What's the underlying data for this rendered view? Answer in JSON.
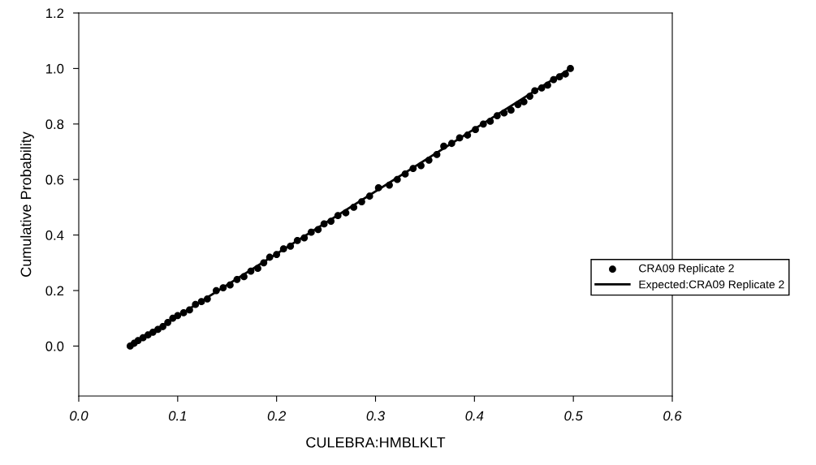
{
  "chart_data": {
    "type": "scatter",
    "xlabel": "CULEBRA:HMBLKLT",
    "ylabel": "Cumulative Probability",
    "xlim": [
      0.0,
      0.6
    ],
    "xticks": [
      {
        "value": 0.0,
        "label": "0.0"
      },
      0.1,
      0.2,
      0.3,
      0.4,
      0.5,
      0.6
    ],
    "ylim": [
      -0.18,
      1.2
    ],
    "yticks": [
      {
        "value": 0.0,
        "label": "0.0"
      },
      0.2,
      0.4,
      0.6,
      0.8,
      {
        "value": 1.0,
        "label": "1.0"
      },
      1.2
    ],
    "grid": false,
    "legend": "right",
    "marker": "circle",
    "series": [
      {
        "name": "CRA09 Replicate 2",
        "color": "#000000",
        "x": [
          0.052,
          0.056,
          0.06,
          0.065,
          0.07,
          0.075,
          0.08,
          0.085,
          0.09,
          0.095,
          0.1,
          0.106,
          0.112,
          0.118,
          0.124,
          0.13,
          0.139,
          0.146,
          0.153,
          0.16,
          0.167,
          0.174,
          0.181,
          0.187,
          0.193,
          0.2,
          0.207,
          0.214,
          0.221,
          0.228,
          0.235,
          0.242,
          0.248,
          0.255,
          0.262,
          0.27,
          0.278,
          0.286,
          0.294,
          0.303,
          0.314,
          0.322,
          0.33,
          0.338,
          0.346,
          0.354,
          0.362,
          0.369,
          0.377,
          0.385,
          0.393,
          0.401,
          0.409,
          0.416,
          0.423,
          0.43,
          0.437,
          0.444,
          0.45,
          0.456,
          0.461,
          0.468,
          0.474,
          0.48,
          0.486,
          0.492,
          0.497
        ],
        "values": [
          0.0,
          0.01,
          0.02,
          0.03,
          0.04,
          0.05,
          0.06,
          0.07,
          0.085,
          0.1,
          0.11,
          0.12,
          0.13,
          0.15,
          0.16,
          0.17,
          0.2,
          0.21,
          0.22,
          0.24,
          0.25,
          0.27,
          0.28,
          0.3,
          0.32,
          0.33,
          0.35,
          0.36,
          0.38,
          0.39,
          0.41,
          0.42,
          0.44,
          0.45,
          0.47,
          0.48,
          0.5,
          0.52,
          0.54,
          0.57,
          0.58,
          0.6,
          0.62,
          0.64,
          0.65,
          0.67,
          0.69,
          0.72,
          0.73,
          0.75,
          0.76,
          0.78,
          0.8,
          0.81,
          0.83,
          0.84,
          0.85,
          0.87,
          0.88,
          0.9,
          0.92,
          0.93,
          0.94,
          0.96,
          0.97,
          0.98,
          1.0
        ]
      },
      {
        "name": "Expected:CRA09 Replicate 2",
        "color": "#000000",
        "type": "line",
        "marker": "none",
        "line_style": "solid",
        "x": [
          0.052,
          0.497
        ],
        "values": [
          0.0,
          1.0
        ]
      }
    ]
  }
}
